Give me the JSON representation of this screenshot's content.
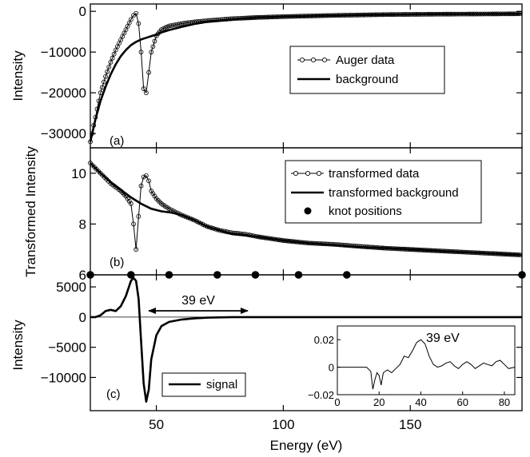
{
  "figure": {
    "xlabel": "Energy (eV)",
    "x_ticks": [
      "50",
      "100",
      "150"
    ]
  },
  "chart_data": [
    {
      "panel": "a",
      "type": "line",
      "panel_label": "(a)",
      "ylabel": "Intensity",
      "xlim": [
        24,
        194
      ],
      "ylim": [
        -33500,
        1800
      ],
      "x_ticks": [
        50,
        100,
        150
      ],
      "y_ticks": [
        0,
        -10000,
        -20000,
        -30000
      ],
      "y_tick_labels": [
        "0",
        "−10000",
        "−20000",
        "−30000"
      ],
      "legend_position": "center-right",
      "series": [
        {
          "name": "Auger data",
          "style": "line-with-open-circles",
          "x": [
            24,
            26,
            28,
            30,
            32,
            34,
            36,
            38,
            40,
            41,
            42,
            43,
            44,
            45,
            46,
            47,
            48,
            50,
            52,
            55,
            60,
            65,
            70,
            80,
            90,
            100,
            120,
            140,
            160,
            180,
            194
          ],
          "y": [
            -32000,
            -26000,
            -20000,
            -16000,
            -12500,
            -9500,
            -7000,
            -4500,
            -2000,
            -1000,
            -500,
            -3000,
            -10000,
            -19000,
            -20000,
            -15000,
            -10000,
            -6000,
            -4500,
            -3600,
            -3000,
            -2600,
            -2300,
            -1800,
            -1500,
            -1300,
            -1000,
            -800,
            -700,
            -650,
            -600
          ]
        },
        {
          "name": "background",
          "style": "thick-line",
          "x": [
            24,
            26,
            28,
            30,
            32,
            34,
            36,
            38,
            40,
            42,
            44,
            46,
            48,
            50,
            52,
            55,
            60,
            65,
            70,
            80,
            90,
            100,
            120,
            140,
            160,
            180,
            194
          ],
          "y": [
            -32000,
            -26500,
            -22000,
            -18500,
            -15500,
            -13000,
            -11000,
            -9500,
            -8300,
            -7500,
            -6900,
            -6500,
            -6100,
            -5700,
            -5200,
            -4600,
            -3800,
            -3100,
            -2600,
            -1900,
            -1500,
            -1300,
            -1000,
            -800,
            -700,
            -650,
            -600
          ]
        }
      ]
    },
    {
      "panel": "b",
      "type": "line",
      "panel_label": "(b)",
      "ylabel": "Transformed Intensity",
      "xlim": [
        24,
        194
      ],
      "ylim": [
        6,
        11
      ],
      "x_ticks": [
        50,
        100,
        150
      ],
      "y_ticks": [
        6,
        8,
        10
      ],
      "y_tick_labels": [
        "6",
        "8",
        "10"
      ],
      "legend_position": "top-right",
      "series": [
        {
          "name": "transformed data",
          "style": "line-with-open-circles",
          "x": [
            24,
            28,
            32,
            36,
            38,
            40,
            41,
            42,
            43,
            44,
            45,
            46,
            47,
            48,
            50,
            52,
            55,
            60,
            65,
            70,
            75,
            80,
            85,
            90,
            100,
            110,
            120,
            130,
            140,
            150,
            160,
            170,
            180,
            190,
            194
          ],
          "y": [
            10.4,
            10.0,
            9.6,
            9.3,
            9.1,
            8.8,
            8.0,
            7.0,
            8.3,
            9.5,
            9.85,
            9.9,
            9.7,
            9.3,
            9.0,
            8.8,
            8.6,
            8.35,
            8.15,
            7.9,
            7.75,
            7.65,
            7.6,
            7.5,
            7.35,
            7.25,
            7.2,
            7.12,
            7.05,
            7.0,
            6.95,
            6.9,
            6.85,
            6.8,
            6.78
          ]
        },
        {
          "name": "transformed background",
          "style": "thick-line",
          "x": [
            24,
            28,
            32,
            36,
            40,
            44,
            48,
            52,
            56,
            60,
            65,
            70,
            75,
            80,
            85,
            90,
            100,
            110,
            120,
            130,
            140,
            150,
            160,
            170,
            180,
            190,
            194
          ],
          "y": [
            10.4,
            10.0,
            9.65,
            9.35,
            9.05,
            8.8,
            8.6,
            8.5,
            8.45,
            8.35,
            8.15,
            7.9,
            7.75,
            7.6,
            7.55,
            7.5,
            7.35,
            7.25,
            7.18,
            7.1,
            7.05,
            7.0,
            6.95,
            6.9,
            6.85,
            6.8,
            6.78
          ]
        },
        {
          "name": "knot positions",
          "style": "filled-markers",
          "x": [
            24,
            40,
            55,
            74,
            89,
            106,
            125,
            194
          ],
          "y": [
            6,
            6,
            6,
            6,
            6,
            6,
            6,
            6
          ]
        }
      ]
    },
    {
      "panel": "c",
      "type": "line",
      "panel_label": "(c)",
      "ylabel": "Intensity",
      "xlabel": "Energy (eV)",
      "xlim": [
        24,
        194
      ],
      "ylim": [
        -15500,
        7000
      ],
      "x_ticks": [
        50,
        100,
        150
      ],
      "y_ticks": [
        5000,
        0,
        -5000,
        -10000
      ],
      "y_tick_labels": [
        "5000",
        "0",
        "−5000",
        "−10000"
      ],
      "legend_position": "lower-center",
      "annotation": {
        "text": "39 eV",
        "arrow_from_x": 47,
        "arrow_to_x": 86
      },
      "series": [
        {
          "name": "signal",
          "style": "thick-line",
          "x": [
            24,
            26,
            28,
            30,
            32,
            34,
            36,
            38,
            40,
            41,
            42,
            43,
            44,
            45,
            46,
            47,
            48,
            50,
            52,
            55,
            60,
            65,
            70,
            80,
            90,
            100,
            120,
            150,
            194
          ],
          "y": [
            0,
            0,
            300,
            1000,
            1200,
            1000,
            1800,
            3500,
            6000,
            6500,
            6000,
            3000,
            -4000,
            -11000,
            -14000,
            -12000,
            -7000,
            -3000,
            -1500,
            -800,
            -400,
            -200,
            -100,
            0,
            0,
            0,
            0,
            0,
            0
          ]
        }
      ],
      "inset": {
        "type": "line",
        "xlim": [
          0,
          85
        ],
        "ylim": [
          -0.02,
          0.03
        ],
        "x_ticks": [
          0,
          20,
          40,
          60,
          80
        ],
        "x_tick_labels": [
          "0",
          "20",
          "40",
          "60",
          "80"
        ],
        "y_ticks": [
          0.02,
          0,
          -0.02
        ],
        "y_tick_labels": [
          "0.02",
          "0",
          "−0.02"
        ],
        "annotation": "39 eV",
        "x": [
          0,
          10,
          14,
          16,
          17,
          18,
          19,
          20,
          21,
          22,
          24,
          26,
          28,
          30,
          32,
          34,
          36,
          38,
          40,
          42,
          44,
          46,
          48,
          50,
          52,
          54,
          56,
          58,
          60,
          62,
          64,
          66,
          68,
          70,
          72,
          74,
          76,
          78,
          80,
          82,
          85
        ],
        "y": [
          0,
          0,
          0,
          -0.003,
          -0.016,
          -0.009,
          -0.004,
          -0.006,
          -0.013,
          -0.004,
          -0.002,
          -0.004,
          -0.001,
          0.002,
          0.008,
          0.007,
          0.012,
          0.018,
          0.02,
          0.017,
          0.008,
          0.002,
          0.0,
          0.001,
          0.003,
          0.004,
          0.001,
          -0.001,
          0.002,
          0.004,
          0.002,
          -0.001,
          0.001,
          0.003,
          0.002,
          0.001,
          0.004,
          0.005,
          0.002,
          -0.001,
          0.0
        ]
      }
    }
  ]
}
